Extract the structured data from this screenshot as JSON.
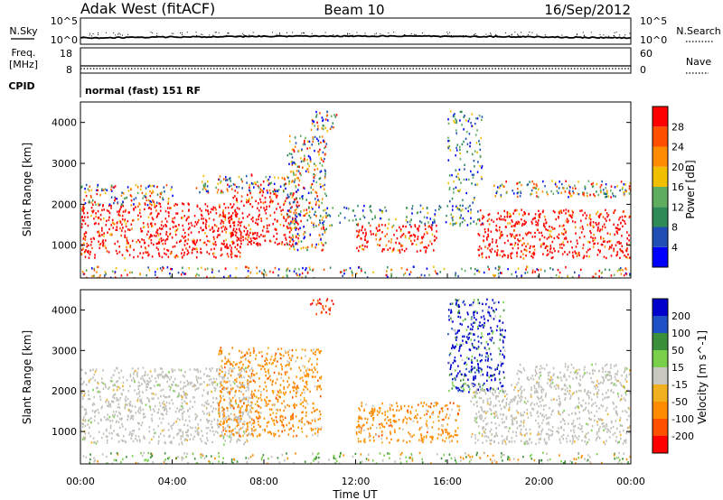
{
  "header": {
    "station": "Adak West (fitACF)",
    "beam": "Beam 10",
    "date": "16/Sep/2012"
  },
  "noise_panel": {
    "left_label": "N.Sky",
    "right_label": "N.Search",
    "left_ticks": [
      "10^5",
      "10^0"
    ],
    "right_ticks": [
      "10^5",
      "10^0"
    ]
  },
  "freq_panel": {
    "left_label_line1": "Freq.",
    "left_label_line2": "[MHz]",
    "right_label": "Nave",
    "left_ticks": [
      "18",
      "8"
    ],
    "right_ticks": [
      "60",
      "0"
    ]
  },
  "cpid_panel": {
    "label": "CPID",
    "mode": "normal (fast) 151 RF"
  },
  "colors": {
    "power_scale": [
      "#0000ff",
      "#1f4fb4",
      "#2e8b57",
      "#5fae5f",
      "#f0c000",
      "#ff8c00",
      "#ff5000",
      "#ff0000"
    ],
    "velocity_scale": [
      "#ff0000",
      "#ff5000",
      "#ff8c00",
      "#f0b020",
      "#c8c8c0",
      "#7ad04a",
      "#3a8f3a",
      "#2050c8",
      "#0000cc"
    ],
    "ground_scatter": "#c0c0b8"
  },
  "chart_data": [
    {
      "type": "heatmap",
      "name": "power",
      "xlabel": "Time UT",
      "ylabel": "Slant Range [km]",
      "xlim": [
        0,
        24
      ],
      "ylim": [
        200,
        4500
      ],
      "x_ticks": [
        "00:00",
        "04:00",
        "08:00",
        "12:00",
        "16:00",
        "20:00",
        "00:00"
      ],
      "y_ticks": [
        1000,
        2000,
        3000,
        4000
      ],
      "colorbar": {
        "label": "Power [dB]",
        "ticks": [
          4,
          8,
          12,
          16,
          20,
          24,
          28
        ],
        "range": [
          0,
          30
        ]
      },
      "regions": [
        {
          "x": [
            0,
            7.0
          ],
          "y": [
            700,
            2050
          ],
          "level": "red"
        },
        {
          "x": [
            0,
            4.0
          ],
          "y": [
            2000,
            2500
          ],
          "level": "mixed"
        },
        {
          "x": [
            5.0,
            9.0
          ],
          "y": [
            2300,
            2750
          ],
          "level": "mixed"
        },
        {
          "x": [
            6.5,
            9.5
          ],
          "y": [
            1000,
            2300
          ],
          "level": "red"
        },
        {
          "x": [
            9.0,
            10.7
          ],
          "y": [
            900,
            3700
          ],
          "level": "mixed"
        },
        {
          "x": [
            10.0,
            11.2
          ],
          "y": [
            3800,
            4300
          ],
          "level": "mixed"
        },
        {
          "x": [
            12.0,
            15.5
          ],
          "y": [
            850,
            1550
          ],
          "level": "red"
        },
        {
          "x": [
            10.5,
            17.0
          ],
          "y": [
            1500,
            2000
          ],
          "level": "weak"
        },
        {
          "x": [
            16.0,
            17.5
          ],
          "y": [
            1500,
            4300
          ],
          "level": "weak"
        },
        {
          "x": [
            17.3,
            24.0
          ],
          "y": [
            700,
            1900
          ],
          "level": "red"
        },
        {
          "x": [
            18.0,
            24.0
          ],
          "y": [
            2200,
            2600
          ],
          "level": "mixed"
        },
        {
          "x": [
            0,
            24.0
          ],
          "y": [
            200,
            500
          ],
          "level": "noise"
        }
      ]
    },
    {
      "type": "heatmap",
      "name": "velocity",
      "xlabel": "Time UT",
      "ylabel": "Slant Range [km]",
      "xlim": [
        0,
        24
      ],
      "ylim": [
        200,
        4500
      ],
      "x_ticks": [
        "00:00",
        "04:00",
        "08:00",
        "12:00",
        "16:00",
        "20:00",
        "00:00"
      ],
      "y_ticks": [
        1000,
        2000,
        3000,
        4000
      ],
      "colorbar": {
        "label": "Velocity [m s^-1]",
        "ticks": [
          200,
          100,
          50,
          15,
          -15,
          -50,
          -100,
          -200
        ],
        "range": [
          -250,
          250
        ]
      },
      "regions": [
        {
          "x": [
            0,
            7.5
          ],
          "y": [
            700,
            2600
          ],
          "level": "ground"
        },
        {
          "x": [
            6.0,
            10.5
          ],
          "y": [
            900,
            3100
          ],
          "level": "orange"
        },
        {
          "x": [
            10.0,
            11.0
          ],
          "y": [
            3900,
            4300
          ],
          "level": "red"
        },
        {
          "x": [
            12.0,
            16.5
          ],
          "y": [
            750,
            1750
          ],
          "level": "orange"
        },
        {
          "x": [
            16.0,
            18.5
          ],
          "y": [
            2000,
            4300
          ],
          "level": "blue"
        },
        {
          "x": [
            17.0,
            24.0
          ],
          "y": [
            700,
            2200
          ],
          "level": "ground"
        },
        {
          "x": [
            19.0,
            24.0
          ],
          "y": [
            2200,
            2700
          ],
          "level": "ground"
        },
        {
          "x": [
            0,
            24.0
          ],
          "y": [
            200,
            500
          ],
          "level": "noise"
        }
      ]
    }
  ]
}
